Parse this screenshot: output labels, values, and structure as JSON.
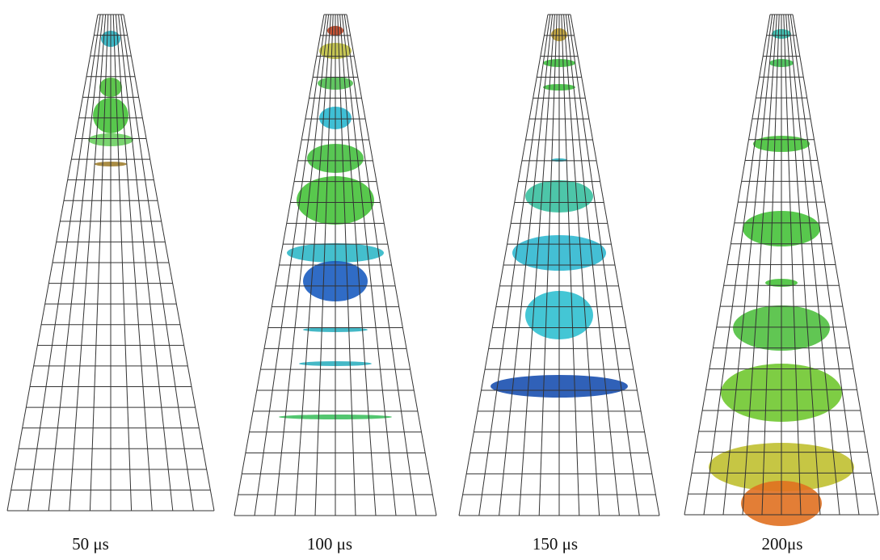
{
  "panels": [
    {
      "label": "50 μs"
    },
    {
      "label": "100 μs"
    },
    {
      "label": "150 μs"
    },
    {
      "label": "200μs"
    }
  ]
}
